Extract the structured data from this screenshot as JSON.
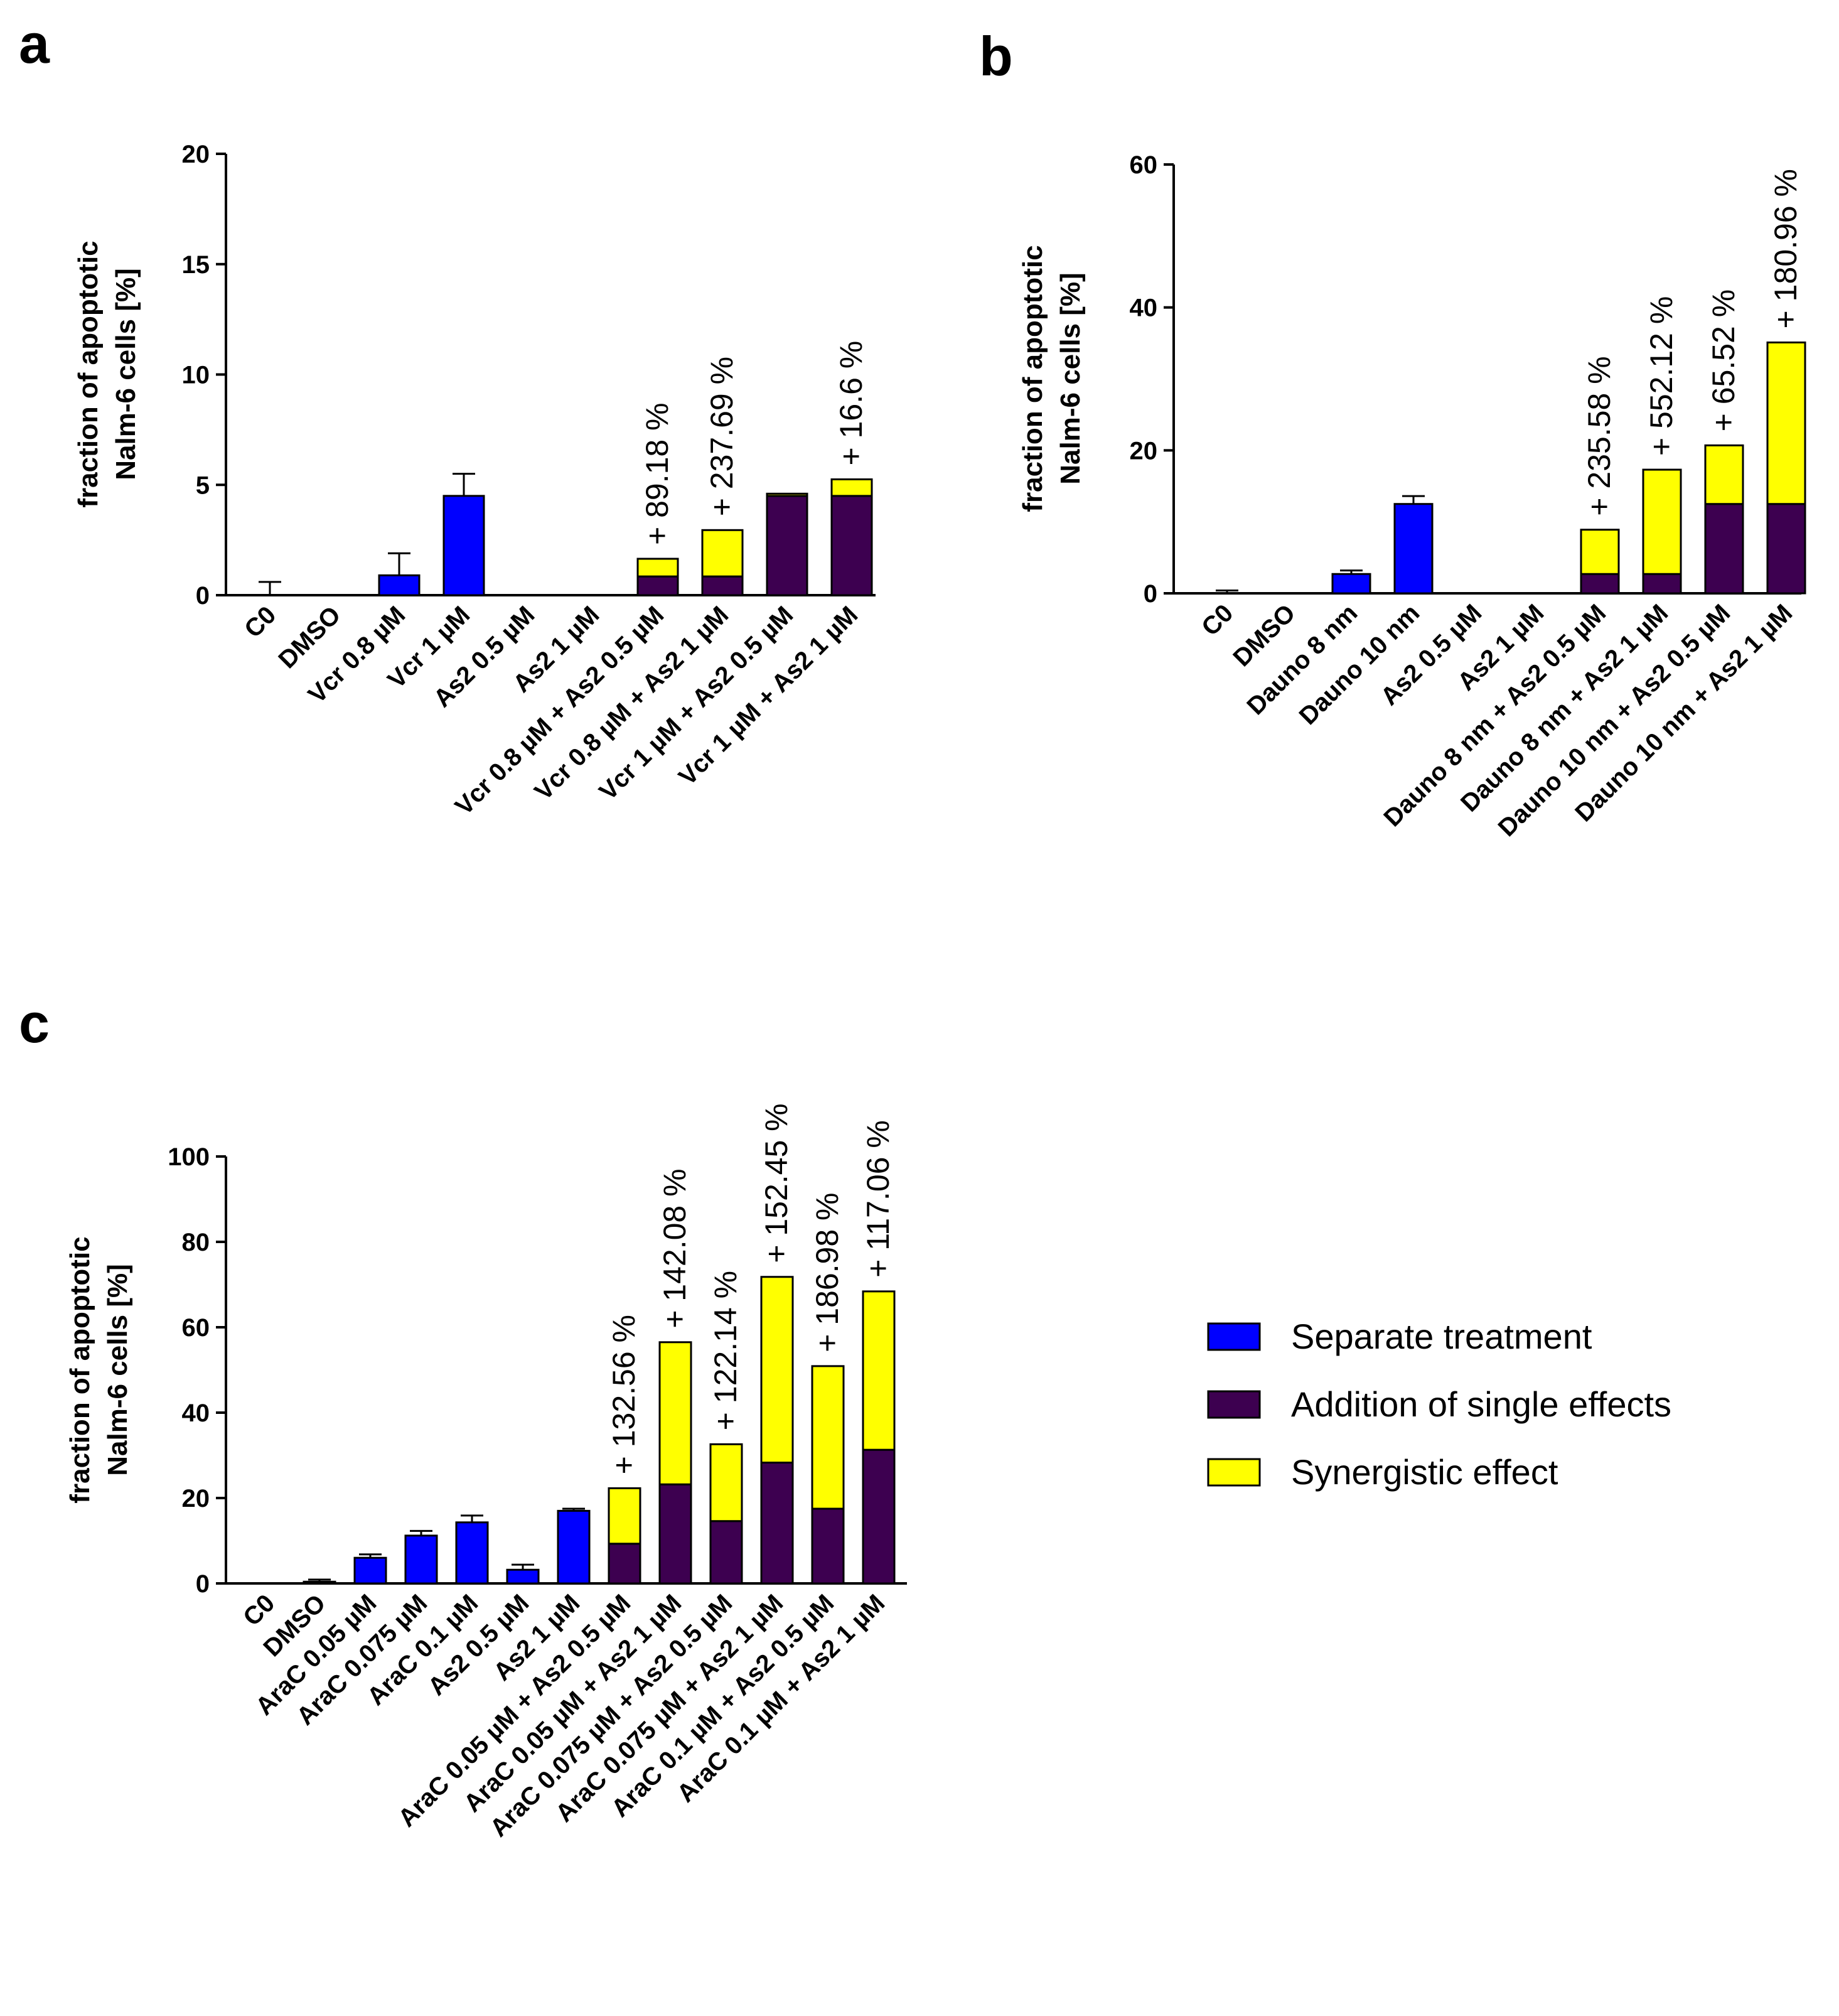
{
  "colors": {
    "separate": "#0000FF",
    "addition": "#3D0050",
    "synergy": "#FFFF00"
  },
  "legend": [
    {
      "key": "separate",
      "label": "Separate treatment"
    },
    {
      "key": "addition",
      "label": "Addition of single effects"
    },
    {
      "key": "synergy",
      "label": "Synergistic effect"
    }
  ],
  "chart_data": [
    {
      "panel": "a",
      "type": "bar",
      "ylabel": [
        "fraction of apoptotic",
        "Nalm-6 cells [%]"
      ],
      "ylim": [
        0,
        20
      ],
      "yticks": [
        0,
        5,
        10,
        15,
        20
      ],
      "categories": [
        "C0",
        "DMSO",
        "Vcr 0.8 µM",
        "Vcr 1 µM",
        "As2 0.5 µM",
        "As2 1 µM",
        "Vcr 0.8 µM + As2 0.5 µM",
        "Vcr 0.8 µM + As2 1 µM",
        "Vcr 1 µM + As2 0.5 µM",
        "Vcr 1 µM + As2 1 µM"
      ],
      "bars": [
        {
          "separate": 0,
          "error": 0.6
        },
        {
          "separate": 0
        },
        {
          "separate": 0.9,
          "error": 1.0
        },
        {
          "separate": 4.5,
          "error": 1.0
        },
        {
          "separate": 0
        },
        {
          "separate": 0
        },
        {
          "addition": 0.85,
          "synergy": 0.8,
          "annotation": "+ 89.18 %"
        },
        {
          "addition": 0.85,
          "synergy": 2.1,
          "annotation": "+ 237.69 %"
        },
        {
          "addition": 4.5,
          "synergy": 0.1
        },
        {
          "addition": 4.5,
          "synergy": 0.75,
          "annotation": "+ 16.6 %"
        }
      ]
    },
    {
      "panel": "b",
      "type": "bar",
      "ylabel": [
        "fraction of apoptotic",
        "Nalm-6 cells [%]"
      ],
      "ylim": [
        0,
        60
      ],
      "yticks": [
        0,
        20,
        40,
        60
      ],
      "categories": [
        "C0",
        "DMSO",
        "Dauno 8 nm",
        "Dauno 10 nm",
        "As2 0.5 µM",
        "As2 1 µM",
        "Dauno 8 nm + As2 0.5 µM",
        "Dauno 8 nm + As2 1 µM",
        "Dauno 10 nm + As2 0.5 µM",
        "Dauno 10 nm + As2 1 µM"
      ],
      "bars": [
        {
          "separate": 0,
          "error": 0.4
        },
        {
          "separate": 0
        },
        {
          "separate": 2.7,
          "error": 0.5
        },
        {
          "separate": 12.5,
          "error": 1.1
        },
        {
          "separate": 0
        },
        {
          "separate": 0
        },
        {
          "addition": 2.7,
          "synergy": 6.2,
          "annotation": "+ 235.58 %"
        },
        {
          "addition": 2.7,
          "synergy": 14.6,
          "annotation": "+ 552.12 %"
        },
        {
          "addition": 12.5,
          "synergy": 8.2,
          "annotation": "+ 65.52 %"
        },
        {
          "addition": 12.5,
          "synergy": 22.6,
          "annotation": "+ 180.96 %"
        }
      ]
    },
    {
      "panel": "c",
      "type": "bar",
      "ylabel": [
        "fraction of apoptotic",
        "Nalm-6 cells [%]"
      ],
      "ylim": [
        0,
        100
      ],
      "yticks": [
        0,
        20,
        40,
        60,
        80,
        100
      ],
      "categories": [
        "C0",
        "DMSO",
        "AraC 0.05 µM",
        "AraC 0.075 µM",
        "AraC 0.1 µM",
        "As2 0.5 µM",
        "As2 1 µM",
        "AraC 0.05 µM + As2 0.5 µM",
        "AraC 0.05 µM + As2 1 µM",
        "AraC 0.075 µM + As2 0.5 µM",
        "AraC 0.075 µM + As2 1 µM",
        "AraC 0.1 µM + As2 0.5 µM",
        "AraC 0.1 µM + As2 1 µM"
      ],
      "bars": [
        {
          "separate": 0
        },
        {
          "separate": 0.4,
          "error": 0.5
        },
        {
          "separate": 6.0,
          "error": 0.8
        },
        {
          "separate": 11.2,
          "error": 1.1
        },
        {
          "separate": 14.3,
          "error": 1.6
        },
        {
          "separate": 3.2,
          "error": 1.2
        },
        {
          "separate": 17.0,
          "error": 0.5
        },
        {
          "addition": 9.3,
          "synergy": 13.0,
          "annotation": "+ 132.56 %"
        },
        {
          "addition": 23.2,
          "synergy": 33.3,
          "annotation": "+ 142.08 %"
        },
        {
          "addition": 14.6,
          "synergy": 18.0,
          "annotation": "+ 122.14 %"
        },
        {
          "addition": 28.3,
          "synergy": 43.5,
          "annotation": "+ 152.45 %"
        },
        {
          "addition": 17.5,
          "synergy": 33.4,
          "annotation": "+ 186.98 %"
        },
        {
          "addition": 31.3,
          "synergy": 37.1,
          "annotation": "+ 117.06 %"
        }
      ]
    }
  ]
}
